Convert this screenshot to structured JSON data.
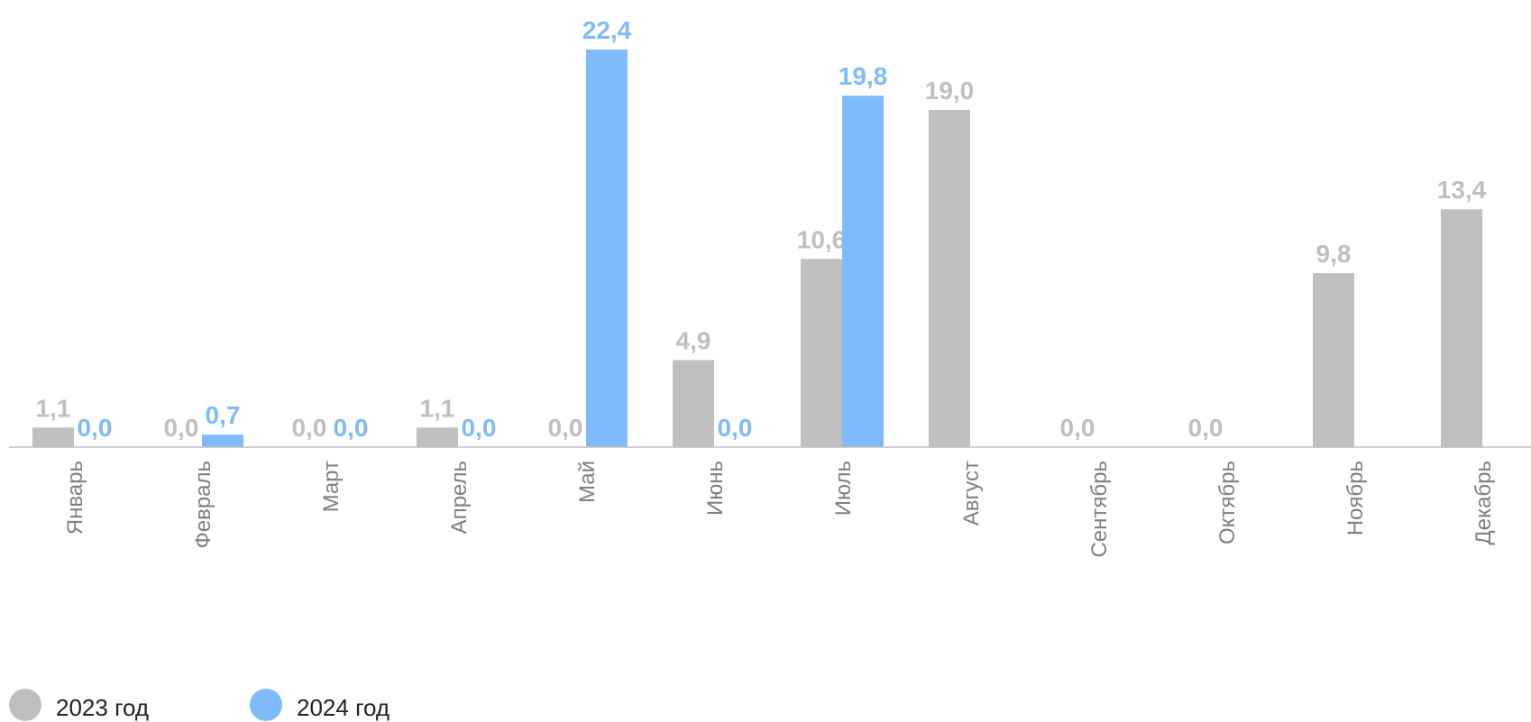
{
  "chart_data": {
    "type": "bar",
    "categories": [
      "Январь",
      "Февраль",
      "Март",
      "Апрель",
      "Май",
      "Июнь",
      "Июль",
      "Август",
      "Сентябрь",
      "Октябрь",
      "Ноябрь",
      "Декабрь"
    ],
    "series": [
      {
        "name": "2023 год",
        "color": "#bfbfbf",
        "values": [
          1.1,
          0.0,
          0.0,
          1.1,
          0.0,
          4.9,
          10.6,
          19.0,
          0.0,
          0.0,
          9.8,
          13.4
        ],
        "labels": [
          "1,1",
          "0,0",
          "0,0",
          "1,1",
          "0,0",
          "4,9",
          "10,6",
          "19,0",
          "0,0",
          "0,0",
          "9,8",
          "13,4"
        ]
      },
      {
        "name": "2024 год",
        "color": "#7fbbfa",
        "values": [
          0.0,
          0.7,
          0.0,
          0.0,
          22.4,
          0.0,
          19.8,
          null,
          null,
          null,
          null,
          null
        ],
        "labels": [
          "0,0",
          "0,7",
          "0,0",
          "0,0",
          "22,4",
          "0,0",
          "19,8",
          null,
          null,
          null,
          null,
          null
        ]
      }
    ],
    "ylim": [
      0,
      22.4
    ],
    "grid": false,
    "legend_position": "bottom-left",
    "title": "",
    "xlabel": "",
    "ylabel": ""
  }
}
